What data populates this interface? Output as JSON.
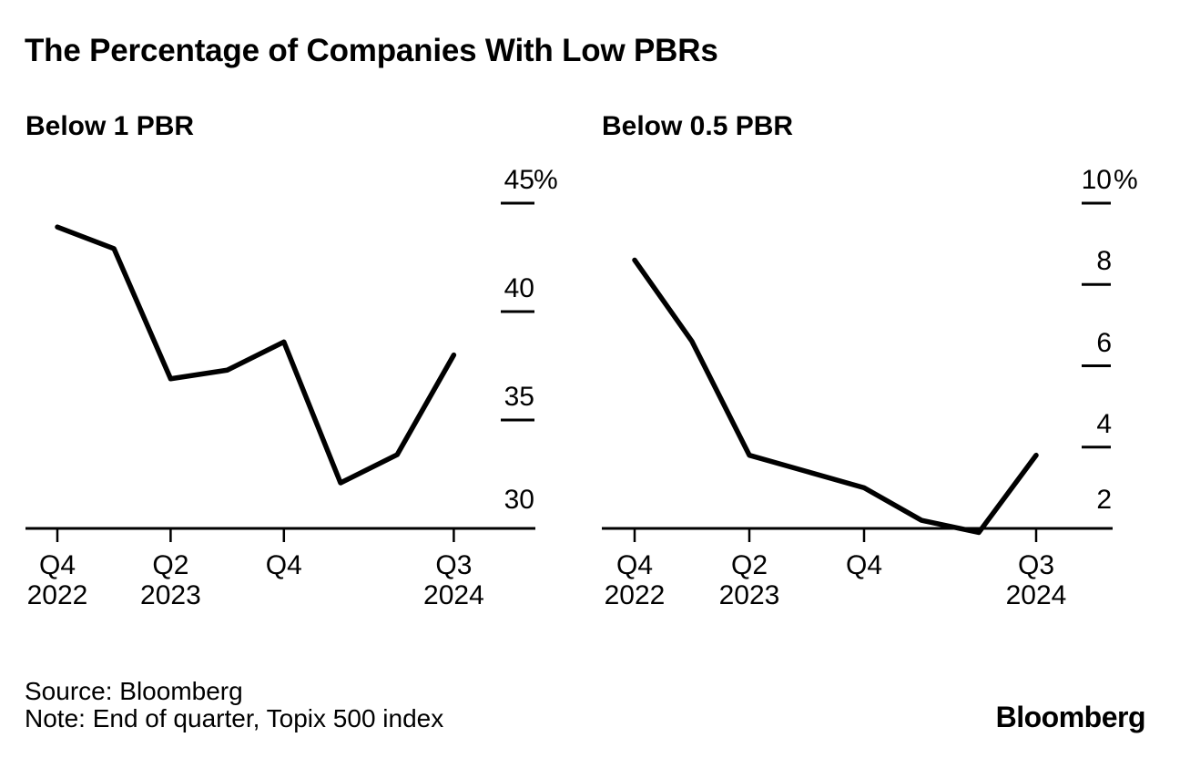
{
  "figure": {
    "title": "The Percentage of Companies With Low PBRs",
    "background_color": "#ffffff",
    "text_color": "#000000",
    "line_color": "#000000"
  },
  "chart_data": [
    {
      "type": "line",
      "title": "Below 1 PBR",
      "x": [
        "Q4 2022",
        "Q1 2023",
        "Q2 2023",
        "Q3 2023",
        "Q4 2023",
        "Q1 2024",
        "Q2 2024",
        "Q3 2024"
      ],
      "values": [
        43.9,
        42.9,
        36.9,
        37.3,
        38.6,
        32.1,
        33.4,
        38.0
      ],
      "unit": "%",
      "ylim": [
        30,
        45
      ],
      "yticks": [
        30,
        35,
        40,
        45
      ],
      "ytick_labels": [
        "30",
        "35",
        "40",
        "45"
      ],
      "xticks": [
        {
          "index": 0,
          "line1": "Q4",
          "line2": "2022"
        },
        {
          "index": 2,
          "line1": "Q2",
          "line2": "2023"
        },
        {
          "index": 4,
          "line1": "Q4",
          "line2": ""
        },
        {
          "index": 7,
          "line1": "Q3",
          "line2": "2024"
        }
      ],
      "grid": false,
      "legend": "none",
      "axis_side": "right"
    },
    {
      "type": "line",
      "title": "Below 0.5 PBR",
      "x": [
        "Q4 2022",
        "Q1 2023",
        "Q2 2023",
        "Q3 2023",
        "Q4 2023",
        "Q1 2024",
        "Q2 2024",
        "Q3 2024"
      ],
      "values": [
        8.6,
        6.6,
        3.8,
        3.4,
        3.0,
        2.2,
        1.9,
        3.8
      ],
      "unit": "%",
      "ylim": [
        2,
        10
      ],
      "yticks": [
        2,
        4,
        6,
        8,
        10
      ],
      "ytick_labels": [
        "2",
        "4",
        "6",
        "8",
        "10"
      ],
      "xticks": [
        {
          "index": 0,
          "line1": "Q4",
          "line2": "2022"
        },
        {
          "index": 2,
          "line1": "Q2",
          "line2": "2023"
        },
        {
          "index": 4,
          "line1": "Q4",
          "line2": ""
        },
        {
          "index": 7,
          "line1": "Q3",
          "line2": "2024"
        }
      ],
      "grid": false,
      "legend": "none",
      "axis_side": "right"
    }
  ],
  "footer": {
    "source": "Source: Bloomberg",
    "note": "Note: End of quarter, Topix 500 index",
    "brand": "Bloomberg"
  }
}
